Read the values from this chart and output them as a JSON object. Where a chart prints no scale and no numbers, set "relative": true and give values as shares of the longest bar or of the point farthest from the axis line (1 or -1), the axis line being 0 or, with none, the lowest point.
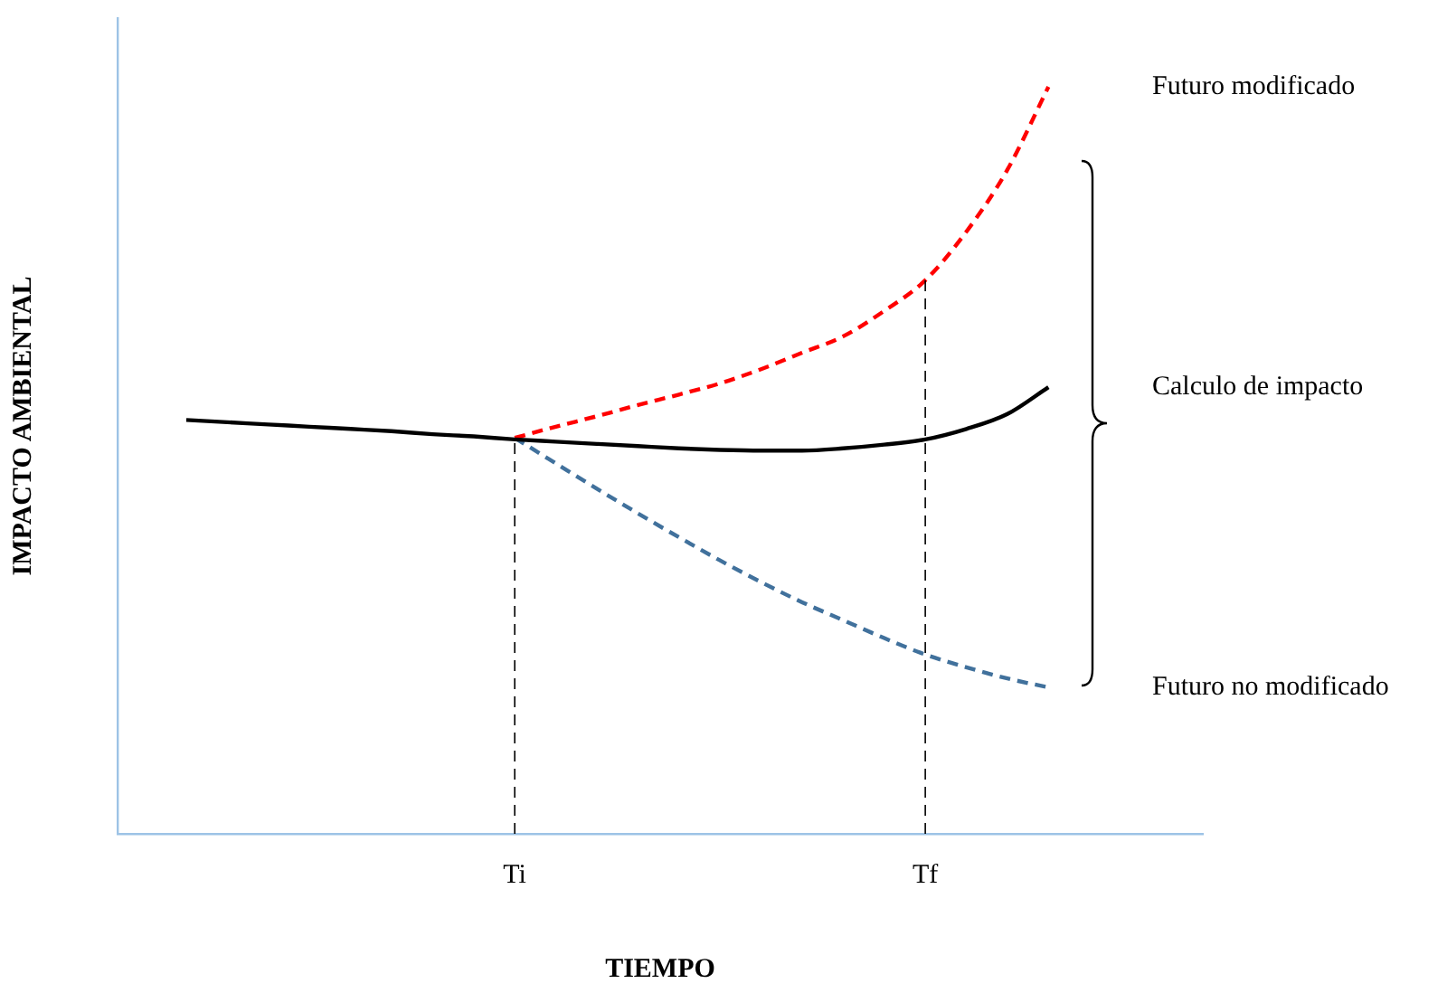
{
  "chart_data": {
    "type": "line",
    "relative": true,
    "xlabel": "TIEMPO",
    "ylabel": "IMPACTO AMBIENTAL",
    "categories": [
      null,
      null,
      null,
      null,
      null,
      null,
      null,
      null,
      "Ti",
      null,
      null,
      null,
      null,
      null,
      null,
      null,
      null,
      null,
      "Tf",
      null,
      null,
      null
    ],
    "series": [
      {
        "color": "#000000",
        "line_style": "solid",
        "values": [
          0.554,
          0.551,
          0.548,
          0.545,
          0.542,
          0.539,
          0.535,
          0.532,
          0.528,
          0.525,
          0.522,
          0.519,
          0.516,
          0.514,
          0.513,
          0.513,
          0.516,
          0.521,
          0.528,
          0.542,
          0.562,
          0.598
        ]
      },
      {
        "name": "Futuro modificado",
        "color": "#ff0000",
        "line_style": "dashed",
        "values": [
          null,
          null,
          null,
          null,
          null,
          null,
          null,
          null,
          0.53,
          0.545,
          0.559,
          0.574,
          0.588,
          0.603,
          0.622,
          0.644,
          0.666,
          0.7,
          0.741,
          0.806,
          0.889,
          1
        ]
      },
      {
        "name": "Futuro no modificado",
        "color": "#41719c",
        "line_style": "dashed",
        "values": [
          null,
          null,
          null,
          null,
          null,
          null,
          null,
          null,
          0.53,
          0.496,
          0.462,
          0.429,
          0.397,
          0.366,
          0.337,
          0.31,
          0.286,
          0.262,
          0.24,
          0.223,
          0.208,
          0.196
        ]
      }
    ],
    "ref_lines": [
      {
        "axis": "x",
        "value": "Ti",
        "color": "#000000",
        "line_style": "dashed"
      },
      {
        "axis": "x",
        "value": "Tf",
        "color": "#000000",
        "line_style": "dashed"
      }
    ],
    "annotations": [
      "Calculo de impacto"
    ],
    "grid": false,
    "legend": false
  }
}
